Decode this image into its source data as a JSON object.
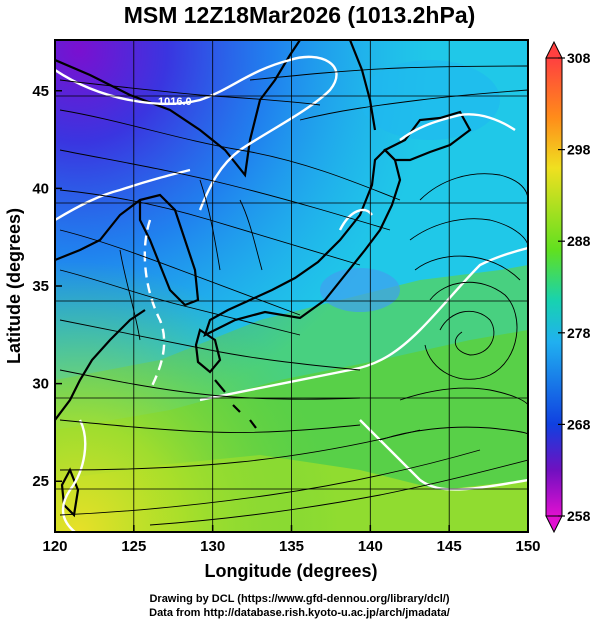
{
  "title": "MSM 12Z18Mar2026 (1013.2hPa)",
  "map": {
    "xlabel": "Longitude (degrees)",
    "ylabel": "Latitude  (degrees)",
    "lon_ticks": [
      "120",
      "125",
      "130",
      "135",
      "140",
      "145",
      "150"
    ],
    "lat_ticks": [
      "25",
      "30",
      "35",
      "40",
      "45"
    ],
    "lon_range": [
      120,
      150
    ],
    "lat_range": [
      22.4,
      47.6
    ],
    "grid": true,
    "fill_field": "temperature (K) at 1013.2 hPa",
    "vector_field": "wind streamlines",
    "contour_label": "1016.0"
  },
  "colorbar": {
    "ticks": [
      "308",
      "298",
      "288",
      "278",
      "268",
      "258"
    ],
    "range": [
      258,
      308
    ],
    "colors": [
      "#ff4040",
      "#ff8c1a",
      "#f0e020",
      "#60e020",
      "#18d2b0",
      "#20b0f0",
      "#1040e0",
      "#7010c0",
      "#e010d0"
    ]
  },
  "credits": {
    "line1": "Drawing by DCL (https://www.gfd-dennou.org/library/dcl/)",
    "line2": "Data from http://database.rish.kyoto-u.ac.jp/arch/jmadata/"
  }
}
